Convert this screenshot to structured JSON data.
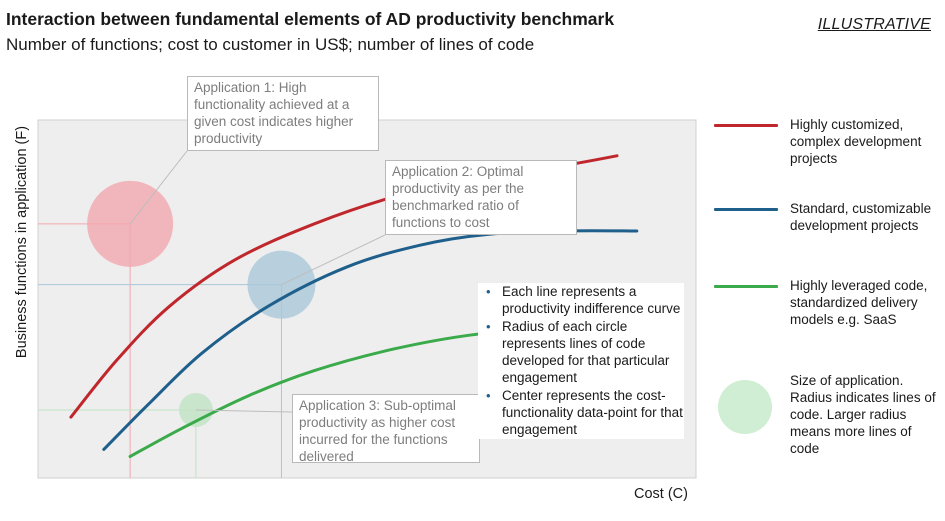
{
  "header": {
    "title": "Interaction between fundamental elements of AD productivity benchmark",
    "subtitle": "Number of functions; cost to customer in US$; number of lines of code",
    "tag": "ILLUSTRATIVE"
  },
  "chart_data": {
    "type": "line",
    "xlabel": "Cost (C)",
    "ylabel": "Business functions in application (F)",
    "xlim": [
      0,
      100
    ],
    "ylim": [
      0,
      100
    ],
    "grid": false,
    "legend_position": "right",
    "series": [
      {
        "name": "Highly customized, complex development projects",
        "color": "#c0272d",
        "points": [
          [
            5,
            17
          ],
          [
            12,
            33
          ],
          [
            20,
            48
          ],
          [
            30,
            61
          ],
          [
            42,
            71
          ],
          [
            55,
            79
          ],
          [
            68,
            84
          ],
          [
            79,
            87
          ],
          [
            88,
            90
          ]
        ]
      },
      {
        "name": "Standard, customizable development projects",
        "color": "#1f5f8c",
        "points": [
          [
            10,
            8
          ],
          [
            17,
            21
          ],
          [
            25,
            35
          ],
          [
            35,
            48
          ],
          [
            47,
            59
          ],
          [
            58,
            65
          ],
          [
            68,
            68
          ],
          [
            80,
            69
          ],
          [
            91,
            69
          ]
        ]
      },
      {
        "name": "Highly leveraged code, standardized delivery models e.g. SaaS",
        "color": "#3aaa4a",
        "points": [
          [
            14,
            6
          ],
          [
            22,
            14
          ],
          [
            32,
            23
          ],
          [
            42,
            30
          ],
          [
            54,
            36
          ],
          [
            66,
            40
          ],
          [
            75,
            41
          ],
          [
            83,
            41
          ]
        ]
      }
    ],
    "bubbles": [
      {
        "name": "Application 1",
        "x": 14,
        "y": 71,
        "size": "large",
        "color": "#f2a7ad"
      },
      {
        "name": "Application 2",
        "x": 37,
        "y": 54,
        "size": "medium",
        "color": "#a9c6d8"
      },
      {
        "name": "Application 3",
        "x": 24,
        "y": 19,
        "size": "small",
        "color": "#bfe4c4"
      }
    ],
    "bubble_legend": "Size of application. Radius indicates lines of code.  Larger radius means more lines of code"
  },
  "callouts": {
    "app1": "Application 1: High functionality achieved at a given cost indicates higher productivity",
    "app2": "Application 2: Optimal productivity as per the benchmarked ratio of functions to cost",
    "app3": "Application 3: Sub-optimal productivity as higher cost incurred for the functions delivered"
  },
  "notes": [
    "Each line represents a productivity indifference curve",
    "Radius of each circle represents lines of code developed for that particular engagement",
    "Center represents the cost-functionality data-point for that engagement"
  ],
  "legend": [
    {
      "label": "Highly customized, complex development projects",
      "color": "#c0272d"
    },
    {
      "label": "Standard, customizable development projects",
      "color": "#1f5f8c"
    },
    {
      "label": "Highly leveraged code, standardized delivery models e.g. SaaS",
      "color": "#3aaa4a"
    }
  ],
  "colors": {
    "plot_background": "#eeeeee",
    "callout_text": "#7d7d7d",
    "bullet": "#1f5f8c"
  }
}
